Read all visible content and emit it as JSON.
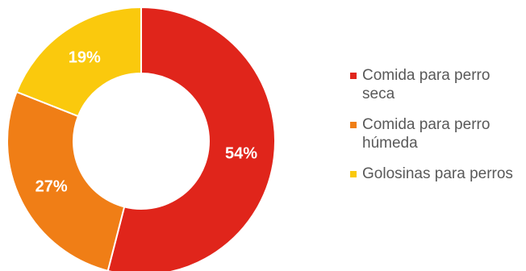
{
  "chart_data": {
    "type": "donut",
    "title": "",
    "categories": [
      "Comida para perro seca",
      "Comida para perro húmeda",
      "Golosinas para perros"
    ],
    "values": [
      54,
      27,
      19
    ],
    "labels": [
      "54%",
      "27%",
      "19%"
    ],
    "colors": [
      "#E0251B",
      "#F07E16",
      "#FAC90D"
    ],
    "legend_position": "right"
  }
}
